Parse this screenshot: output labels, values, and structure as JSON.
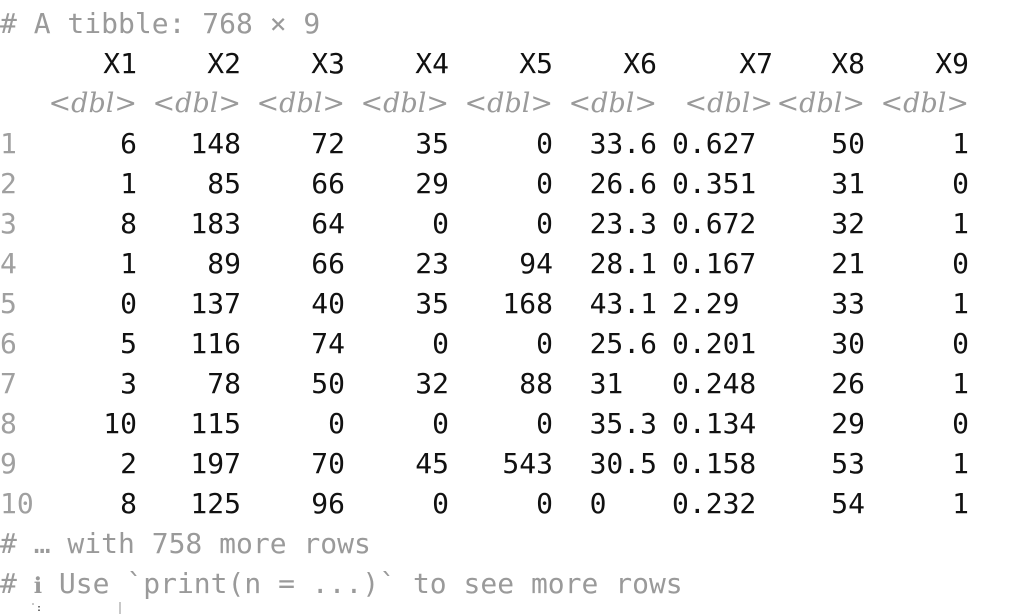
{
  "title_line": "# A tibble: 768 × 9",
  "columns": [
    "X1",
    "X2",
    "X3",
    "X4",
    "X5",
    "X6",
    "X7",
    "X8",
    "X9"
  ],
  "types": [
    "<dbl>",
    "<dbl>",
    "<dbl>",
    "<dbl>",
    "<dbl>",
    "<dbl>",
    "<dbl>",
    "<dbl>",
    "<dbl>"
  ],
  "rows": [
    {
      "n": "1",
      "v": [
        "6",
        "148",
        "72",
        "35",
        "0",
        "33.6",
        "0.627",
        "50",
        "1"
      ]
    },
    {
      "n": "2",
      "v": [
        "1",
        "85",
        "66",
        "29",
        "0",
        "26.6",
        "0.351",
        "31",
        "0"
      ]
    },
    {
      "n": "3",
      "v": [
        "8",
        "183",
        "64",
        "0",
        "0",
        "23.3",
        "0.672",
        "32",
        "1"
      ]
    },
    {
      "n": "4",
      "v": [
        "1",
        "89",
        "66",
        "23",
        "94",
        "28.1",
        "0.167",
        "21",
        "0"
      ]
    },
    {
      "n": "5",
      "v": [
        "0",
        "137",
        "40",
        "35",
        "168",
        "43.1",
        "2.29 ",
        "33",
        "1"
      ]
    },
    {
      "n": "6",
      "v": [
        "5",
        "116",
        "74",
        "0",
        "0",
        "25.6",
        "0.201",
        "30",
        "0"
      ]
    },
    {
      "n": "7",
      "v": [
        "3",
        "78",
        "50",
        "32",
        "88",
        "31  ",
        "0.248",
        "26",
        "1"
      ]
    },
    {
      "n": "8",
      "v": [
        "10",
        "115",
        "0",
        "0",
        "0",
        "35.3",
        "0.134",
        "29",
        "0"
      ]
    },
    {
      "n": "9",
      "v": [
        "2",
        "197",
        "70",
        "45",
        "543",
        "30.5",
        "0.158",
        "53",
        "1"
      ]
    },
    {
      "n": "10",
      "v": [
        "8",
        "125",
        "96",
        "0",
        "0",
        "0   ",
        "0.232",
        "54",
        "1"
      ]
    }
  ],
  "footer": {
    "more_rows": "# … with 758 more rows",
    "hint_prefix": "# ",
    "hint_icon": "ℹ",
    "hint_text": " Use `print(n = ...)` to see more rows"
  },
  "colors": {
    "text": "#111111",
    "muted": "#9a9a9a",
    "background": "#ffffff"
  }
}
